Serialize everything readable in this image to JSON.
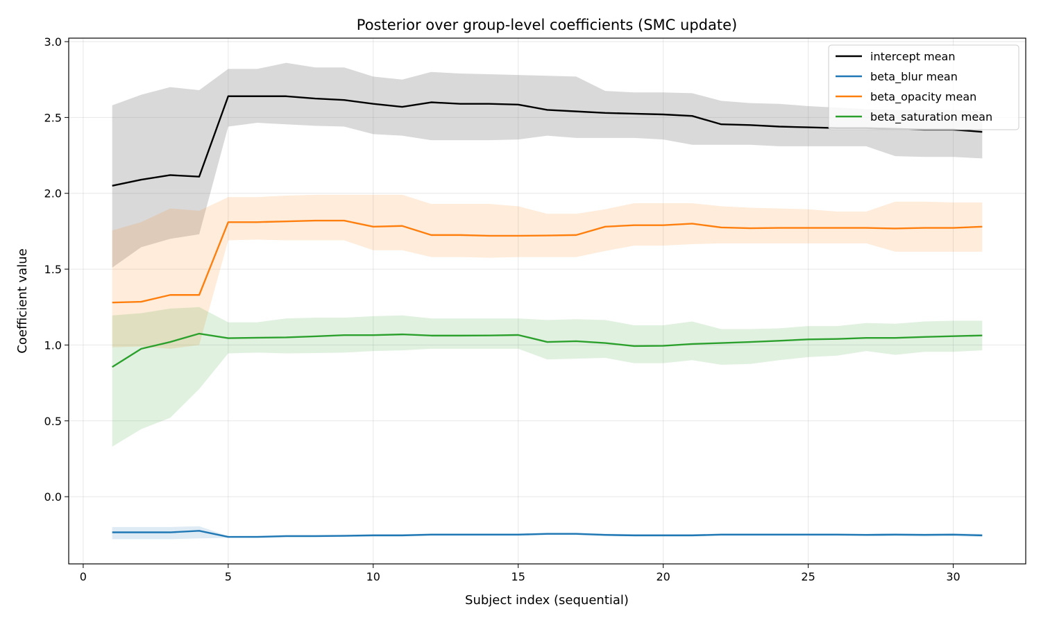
{
  "chart_data": {
    "type": "line",
    "title": "Posterior over group-level coefficients (SMC update)",
    "xlabel": "Subject index (sequential)",
    "ylabel": "Coefficient value",
    "xlim": [
      -0.5,
      32.5
    ],
    "ylim": [
      -0.443,
      3.023
    ],
    "xticks": [
      0,
      5,
      10,
      15,
      20,
      25,
      30
    ],
    "xtick_labels": [
      "0",
      "5",
      "10",
      "15",
      "20",
      "25",
      "30"
    ],
    "yticks": [
      0.0,
      0.5,
      1.0,
      1.5,
      2.0,
      2.5,
      3.0
    ],
    "ytick_labels": [
      "0.0",
      "0.5",
      "1.0",
      "1.5",
      "2.0",
      "2.5",
      "3.0"
    ],
    "grid": true,
    "legend_position": "top-right",
    "x": [
      1,
      2,
      3,
      4,
      5,
      6,
      7,
      8,
      9,
      10,
      11,
      12,
      13,
      14,
      15,
      16,
      17,
      18,
      19,
      20,
      21,
      22,
      23,
      24,
      25,
      26,
      27,
      28,
      29,
      30,
      31
    ],
    "series": [
      {
        "name": "intercept mean",
        "color": "#000000",
        "band_color": "#808080",
        "values": [
          2.05,
          2.09,
          2.12,
          2.11,
          2.64,
          2.64,
          2.64,
          2.625,
          2.615,
          2.59,
          2.57,
          2.6,
          2.59,
          2.59,
          2.585,
          2.55,
          2.54,
          2.53,
          2.525,
          2.52,
          2.51,
          2.455,
          2.45,
          2.44,
          2.435,
          2.43,
          2.43,
          2.425,
          2.42,
          2.42,
          2.405
        ],
        "upper": [
          2.58,
          2.65,
          2.7,
          2.68,
          2.82,
          2.82,
          2.86,
          2.83,
          2.83,
          2.77,
          2.75,
          2.8,
          2.79,
          2.785,
          2.78,
          2.775,
          2.77,
          2.675,
          2.665,
          2.665,
          2.66,
          2.61,
          2.595,
          2.59,
          2.575,
          2.565,
          2.555,
          2.55,
          2.55,
          2.55,
          2.54
        ],
        "lower": [
          1.51,
          1.645,
          1.7,
          1.73,
          2.44,
          2.465,
          2.455,
          2.445,
          2.44,
          2.39,
          2.38,
          2.35,
          2.35,
          2.35,
          2.355,
          2.38,
          2.365,
          2.365,
          2.365,
          2.355,
          2.32,
          2.32,
          2.32,
          2.31,
          2.31,
          2.31,
          2.31,
          2.245,
          2.24,
          2.24,
          2.23
        ]
      },
      {
        "name": "beta_blur mean",
        "color": "#1f77b4",
        "band_color": "#1f77b4",
        "values": [
          -0.235,
          -0.235,
          -0.235,
          -0.225,
          -0.265,
          -0.265,
          -0.26,
          -0.26,
          -0.258,
          -0.255,
          -0.255,
          -0.25,
          -0.25,
          -0.25,
          -0.25,
          -0.245,
          -0.245,
          -0.252,
          -0.255,
          -0.255,
          -0.255,
          -0.25,
          -0.25,
          -0.25,
          -0.25,
          -0.25,
          -0.252,
          -0.25,
          -0.252,
          -0.25,
          -0.255
        ],
        "upper": [
          -0.2,
          -0.2,
          -0.2,
          -0.195,
          -0.26,
          -0.258,
          -0.252,
          -0.252,
          -0.25,
          -0.247,
          -0.247,
          -0.242,
          -0.242,
          -0.242,
          -0.242,
          -0.237,
          -0.237,
          -0.243,
          -0.247,
          -0.247,
          -0.247,
          -0.242,
          -0.242,
          -0.242,
          -0.242,
          -0.242,
          -0.244,
          -0.24,
          -0.242,
          -0.24,
          -0.245
        ],
        "lower": [
          -0.28,
          -0.28,
          -0.28,
          -0.275,
          -0.272,
          -0.272,
          -0.268,
          -0.268,
          -0.266,
          -0.263,
          -0.263,
          -0.258,
          -0.258,
          -0.258,
          -0.258,
          -0.253,
          -0.253,
          -0.26,
          -0.263,
          -0.263,
          -0.263,
          -0.258,
          -0.258,
          -0.258,
          -0.258,
          -0.258,
          -0.26,
          -0.26,
          -0.262,
          -0.26,
          -0.265
        ]
      },
      {
        "name": "beta_opacity mean",
        "color": "#ff7f0e",
        "band_color": "#ff7f0e",
        "values": [
          1.28,
          1.285,
          1.33,
          1.33,
          1.81,
          1.81,
          1.815,
          1.82,
          1.82,
          1.78,
          1.785,
          1.725,
          1.725,
          1.72,
          1.72,
          1.722,
          1.725,
          1.78,
          1.79,
          1.79,
          1.8,
          1.775,
          1.77,
          1.772,
          1.772,
          1.772,
          1.772,
          1.768,
          1.772,
          1.772,
          1.78
        ],
        "upper": [
          1.755,
          1.81,
          1.9,
          1.885,
          1.975,
          1.975,
          1.985,
          1.99,
          1.99,
          1.99,
          1.99,
          1.93,
          1.93,
          1.93,
          1.915,
          1.865,
          1.865,
          1.895,
          1.935,
          1.935,
          1.935,
          1.915,
          1.905,
          1.9,
          1.895,
          1.88,
          1.88,
          1.945,
          1.945,
          1.94,
          1.94
        ],
        "lower": [
          0.985,
          0.99,
          0.975,
          1.0,
          1.69,
          1.695,
          1.69,
          1.69,
          1.69,
          1.625,
          1.625,
          1.58,
          1.58,
          1.575,
          1.58,
          1.58,
          1.58,
          1.62,
          1.655,
          1.655,
          1.665,
          1.67,
          1.67,
          1.67,
          1.67,
          1.67,
          1.67,
          1.615,
          1.615,
          1.615,
          1.615
        ]
      },
      {
        "name": "beta_saturation mean",
        "color": "#2ca02c",
        "band_color": "#2ca02c",
        "values": [
          0.855,
          0.975,
          1.02,
          1.075,
          1.045,
          1.048,
          1.05,
          1.057,
          1.065,
          1.065,
          1.07,
          1.062,
          1.062,
          1.063,
          1.066,
          1.02,
          1.025,
          1.013,
          0.993,
          0.995,
          1.007,
          1.013,
          1.02,
          1.028,
          1.037,
          1.04,
          1.047,
          1.047,
          1.053,
          1.058,
          1.063
        ],
        "upper": [
          1.195,
          1.21,
          1.24,
          1.25,
          1.15,
          1.15,
          1.175,
          1.18,
          1.18,
          1.19,
          1.195,
          1.175,
          1.175,
          1.175,
          1.175,
          1.165,
          1.17,
          1.165,
          1.13,
          1.13,
          1.155,
          1.105,
          1.105,
          1.11,
          1.125,
          1.125,
          1.145,
          1.14,
          1.155,
          1.16,
          1.16
        ],
        "lower": [
          0.33,
          0.445,
          0.52,
          0.71,
          0.945,
          0.95,
          0.945,
          0.947,
          0.95,
          0.96,
          0.965,
          0.975,
          0.975,
          0.975,
          0.975,
          0.905,
          0.91,
          0.915,
          0.88,
          0.88,
          0.9,
          0.87,
          0.875,
          0.9,
          0.92,
          0.93,
          0.96,
          0.935,
          0.955,
          0.955,
          0.965
        ]
      }
    ]
  }
}
